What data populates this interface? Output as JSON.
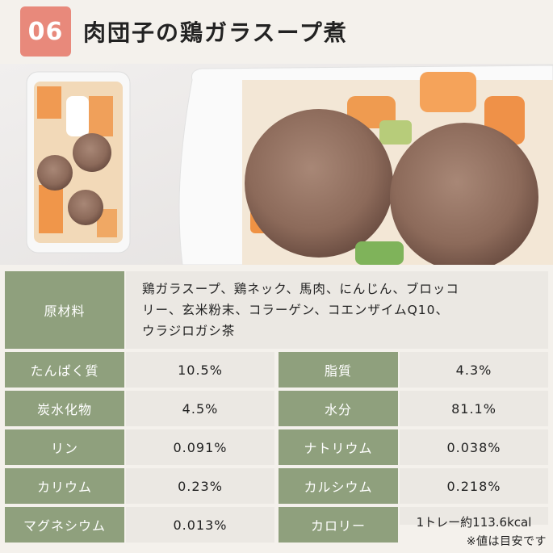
{
  "header": {
    "number": "06",
    "title": "肉団子の鶏ガラスープ煮"
  },
  "ingredients": {
    "label": "原材料",
    "value": "鶏ガラスープ、鶏ネック、馬肉、にんじん、ブロッコリー、玄米粉末、コラーゲン、コエンザイムQ10、ウラジロガシ茶",
    "line1": "鶏ガラスープ、鶏ネック、馬肉、にんじん、ブロッコ",
    "line2": "リー、玄米粉末、コラーゲン、コエンザイムQ10、",
    "line3": "ウラジロガシ茶"
  },
  "nutrition": [
    {
      "label_left": "たんぱく質",
      "value_left": "10.5%",
      "label_right": "脂質",
      "value_right": "4.3%"
    },
    {
      "label_left": "炭水化物",
      "value_left": "4.5%",
      "label_right": "水分",
      "value_right": "81.1%"
    },
    {
      "label_left": "リン",
      "value_left": "0.091%",
      "label_right": "ナトリウム",
      "value_right": "0.038%"
    },
    {
      "label_left": "カリウム",
      "value_left": "0.23%",
      "label_right": "カルシウム",
      "value_right": "0.218%"
    },
    {
      "label_left": "マグネシウム",
      "value_left": "0.013%",
      "label_right": "カロリー",
      "value_right": "1トレー約113.6kcal"
    }
  ],
  "note": "※値は目安です",
  "colors": {
    "badge": "#e8897b",
    "label_bg": "#8fa07d",
    "value_bg": "#ebe8e3",
    "page_bg": "#f4f1ec"
  }
}
